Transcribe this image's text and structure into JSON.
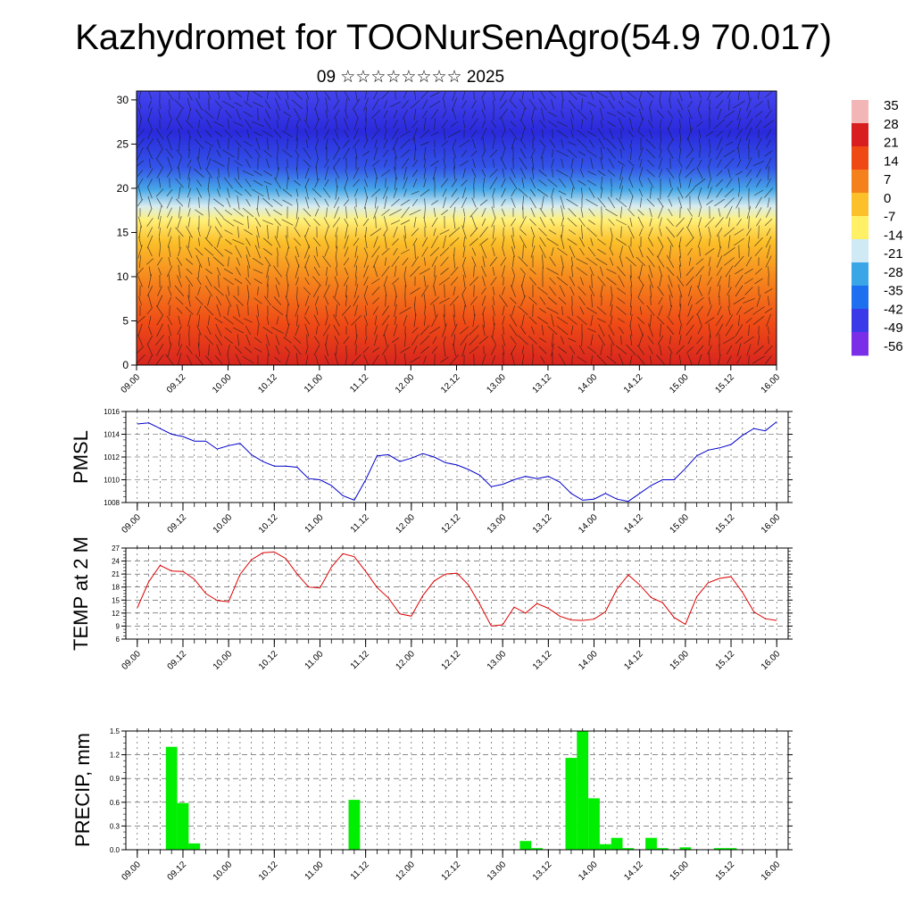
{
  "title": "Kazhydromet for TOONurSenAgro(54.9 70.017)",
  "subtitle": "09 ☆☆☆☆☆☆☆☆ 2025",
  "x_tick_labels": [
    "09.00",
    "09.12",
    "10.00",
    "10.12",
    "11.00",
    "11.12",
    "12.00",
    "12.12",
    "13.00",
    "13.12",
    "14.00",
    "14.12",
    "15.00",
    "15.12",
    "16.00"
  ],
  "colorbar": {
    "labels": [
      "35",
      "28",
      "21",
      "14",
      "7",
      "0",
      "-7",
      "-14",
      "-21",
      "-28",
      "-35",
      "-42",
      "-49",
      "-56"
    ],
    "colors": [
      "#f2b6b6",
      "#d81e1e",
      "#f04a14",
      "#f5811c",
      "#fbc02a",
      "#fff066",
      "#cfe9f5",
      "#3aa6e8",
      "#1e6ff0",
      "#3a3ae8",
      "#7a2ee8"
    ]
  },
  "chart_data": [
    {
      "type": "heatmap",
      "ylim": [
        0,
        31
      ],
      "yticks": [
        0,
        5,
        10,
        15,
        20,
        25,
        30
      ],
      "x": "time",
      "variable": "temperature with wind vectors",
      "range": [
        -56,
        35
      ]
    },
    {
      "type": "line",
      "ylabel": "PMSL",
      "ylim": [
        1008,
        1016
      ],
      "yticks": [
        1008,
        1010,
        1012,
        1014,
        1016
      ],
      "color": "#0000cc",
      "values": [
        1014.9,
        1015.0,
        1014.5,
        1014.0,
        1013.8,
        1013.4,
        1013.4,
        1012.7,
        1013.0,
        1013.2,
        1012.2,
        1011.6,
        1011.2,
        1011.2,
        1011.1,
        1010.1,
        1010.0,
        1009.5,
        1008.6,
        1008.2,
        1010.0,
        1012.1,
        1012.2,
        1011.6,
        1011.9,
        1012.3,
        1012.0,
        1011.5,
        1011.3,
        1010.9,
        1010.4,
        1009.4,
        1009.6,
        1010.0,
        1010.3,
        1010.1,
        1010.3,
        1009.8,
        1008.8,
        1008.2,
        1008.3,
        1008.8,
        1008.3,
        1008.1,
        1008.8,
        1009.5,
        1010.0,
        1010.0,
        1011.0,
        1012.1,
        1012.6,
        1012.8,
        1013.1,
        1013.9,
        1014.5,
        1014.3,
        1015.1
      ]
    },
    {
      "type": "line",
      "ylabel": "TEMP at 2 M",
      "ylim": [
        6,
        27
      ],
      "yticks": [
        6,
        9,
        12,
        15,
        18,
        21,
        24,
        27
      ],
      "color": "#dd0000",
      "values": [
        13.2,
        19.2,
        23.0,
        21.7,
        21.6,
        19.8,
        16.5,
        14.9,
        14.6,
        20.9,
        24.3,
        25.9,
        26.1,
        24.6,
        21.0,
        18.0,
        17.8,
        22.6,
        25.7,
        25.0,
        21.6,
        17.9,
        15.5,
        11.8,
        11.3,
        16.0,
        19.4,
        21.0,
        21.2,
        18.5,
        14.0,
        9.0,
        9.3,
        13.4,
        12.0,
        14.2,
        13.1,
        11.3,
        10.4,
        10.3,
        10.6,
        12.3,
        17.5,
        20.8,
        18.5,
        15.6,
        14.4,
        11.0,
        9.4,
        15.8,
        19.0,
        20.0,
        20.4,
        16.8,
        12.3,
        10.7,
        10.3
      ]
    },
    {
      "type": "bar",
      "ylabel": "PRECIP, mm",
      "ylim": [
        0,
        1.5
      ],
      "yticks": [
        "0.0",
        "0.3",
        "0.6",
        "0.9",
        "1.2",
        "1.5"
      ],
      "color": "#00ee00",
      "values": [
        0,
        0,
        0,
        1.3,
        0.59,
        0.08,
        0,
        0,
        0,
        0,
        0,
        0,
        0,
        0,
        0,
        0,
        0,
        0,
        0,
        0.63,
        0,
        0,
        0,
        0,
        0,
        0,
        0,
        0,
        0,
        0,
        0,
        0,
        0,
        0,
        0.11,
        0.02,
        0,
        0,
        1.16,
        1.52,
        0.65,
        0.07,
        0.15,
        0.02,
        0,
        0.15,
        0.02,
        0,
        0.03,
        0,
        0,
        0.02,
        0.02,
        0,
        0,
        0,
        0
      ]
    }
  ]
}
